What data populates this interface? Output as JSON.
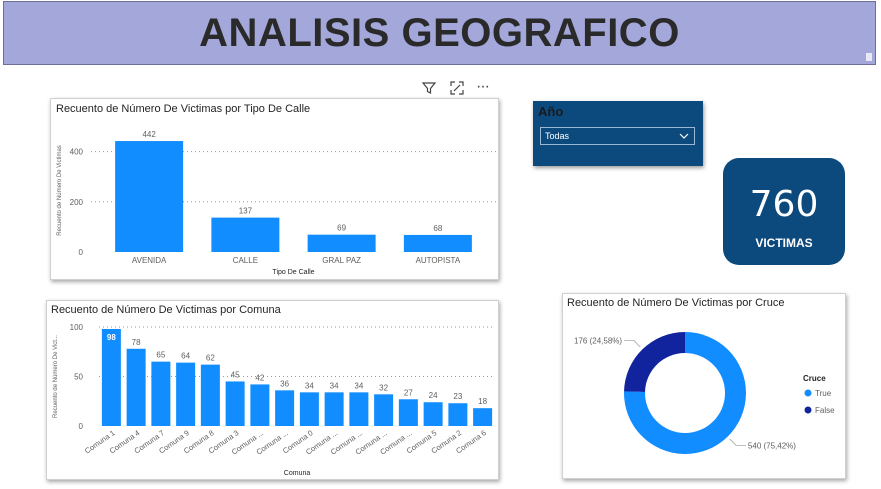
{
  "header": {
    "title": "ANALISIS GEOGRAFICO"
  },
  "visual_toolbar": {
    "icons": [
      "filter-icon",
      "focus-mode-icon",
      "more-options-icon"
    ],
    "more_glyph": "···"
  },
  "colors": {
    "bar": "#118dff",
    "dark_navy": "#12239e",
    "banner": "#a3a7d9",
    "card_navy": "#0c4a7e"
  },
  "slicer": {
    "label": "Año",
    "selected": "Todas"
  },
  "kpi": {
    "value": "760",
    "label": "VICTIMAS"
  },
  "chart_data": [
    {
      "type": "bar",
      "title": "Recuento de Número De Victimas por Tipo De Calle",
      "xlabel": "Tipo De Calle",
      "ylabel": "Recuento de Número De Victimas",
      "categories": [
        "AVENIDA",
        "CALLE",
        "GRAL PAZ",
        "AUTOPISTA"
      ],
      "values": [
        442,
        137,
        69,
        68
      ],
      "yticks": [
        "0",
        "200",
        "400"
      ],
      "ylim": [
        0,
        490
      ],
      "grid": true
    },
    {
      "type": "bar",
      "title": "Recuento de Número De Victimas por Comuna",
      "xlabel": "Comuna",
      "ylabel": "Recuento de Número De Vict...",
      "categories": [
        "Comuna 1",
        "Comuna 4",
        "Comuna 7",
        "Comuna 9",
        "Comuna 8",
        "Comuna 3",
        "Comuna ...",
        "Comuna ...",
        "Comuna 0",
        "Comuna ...",
        "Comuna ...",
        "Comuna ...",
        "Comuna ...",
        "Comuna 5",
        "Comuna 2",
        "Comuna 6"
      ],
      "values": [
        98,
        78,
        65,
        64,
        62,
        45,
        42,
        36,
        34,
        34,
        34,
        32,
        27,
        24,
        23,
        18
      ],
      "yticks": [
        "0",
        "50",
        "100"
      ],
      "ylim": [
        0,
        100
      ],
      "grid": true
    },
    {
      "type": "pie",
      "title": "Recuento de Número De Victimas por Cruce",
      "legend_title": "Cruce",
      "slices": [
        {
          "name": "True",
          "value": 540,
          "label": "540 (75,42%)",
          "color": "#118dff"
        },
        {
          "name": "False",
          "value": 176,
          "label": "176 (24,58%)",
          "color": "#12239e"
        }
      ],
      "donut": true
    }
  ]
}
